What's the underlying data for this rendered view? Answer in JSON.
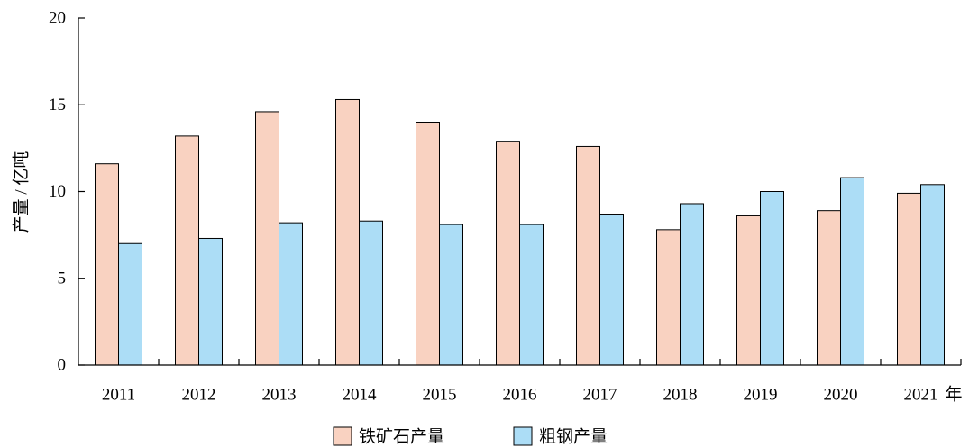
{
  "chart_data": {
    "type": "bar",
    "xlabel": "年",
    "ylabel": "产量 / 亿吨",
    "ylim": [
      0,
      20
    ],
    "yticks": [
      0,
      5,
      10,
      15,
      20
    ],
    "grid": false,
    "legend": "bottom",
    "categories": [
      "2011",
      "2012",
      "2013",
      "2014",
      "2015",
      "2016",
      "2017",
      "2018",
      "2019",
      "2020",
      "2021"
    ],
    "series": [
      {
        "name": "铁矿石产量",
        "color": "#F9D2C1",
        "values": [
          11.6,
          13.2,
          14.6,
          15.3,
          14.0,
          12.9,
          12.6,
          7.8,
          8.6,
          8.9,
          9.9
        ]
      },
      {
        "name": "粗钢产量",
        "color": "#ACDDF6",
        "values": [
          7.0,
          7.3,
          8.2,
          8.3,
          8.1,
          8.1,
          8.7,
          9.3,
          10.0,
          10.8,
          10.4
        ]
      }
    ]
  }
}
